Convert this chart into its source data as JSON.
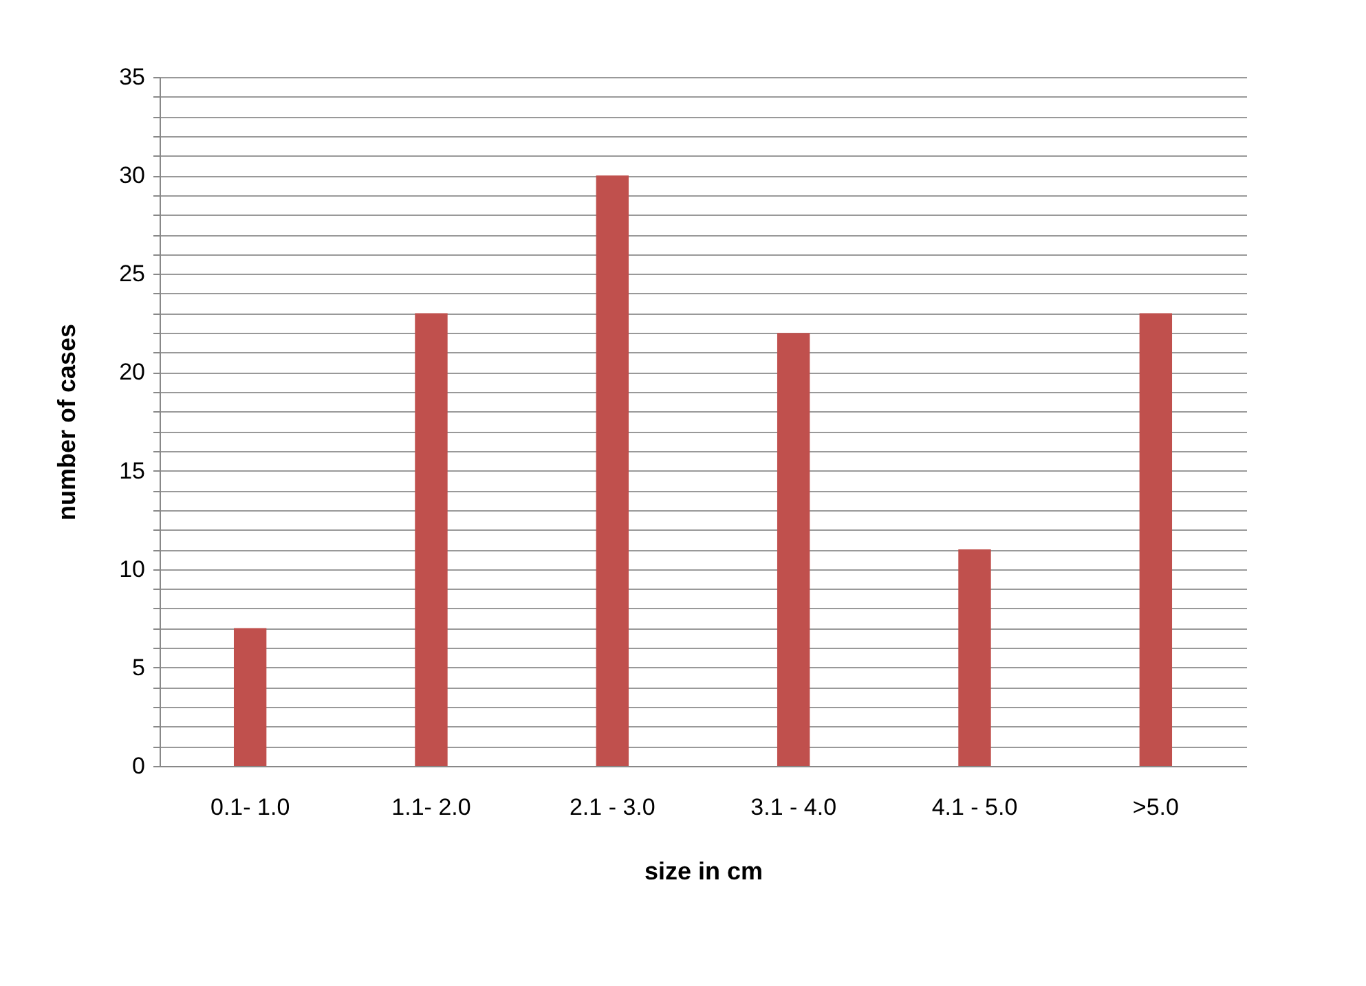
{
  "chart_data": {
    "type": "bar",
    "xlabel": "size in cm",
    "ylabel": "number of cases",
    "categories": [
      "0.1- 1.0",
      "1.1- 2.0",
      "2.1 - 3.0",
      "3.1 - 4.0",
      "4.1 - 5.0",
      ">5.0"
    ],
    "values": [
      7,
      23,
      30,
      22,
      11,
      23
    ],
    "color": "#c0504d",
    "ylim": [
      0,
      35
    ],
    "yticks": [
      0,
      {
        "value": 1,
        "label": null
      },
      {
        "value": 2,
        "label": null
      },
      {
        "value": 3,
        "label": null
      },
      {
        "value": 4,
        "label": null
      },
      5,
      {
        "value": 6,
        "label": null
      },
      {
        "value": 7,
        "label": null
      },
      {
        "value": 8,
        "label": null
      },
      {
        "value": 9,
        "label": null
      },
      10,
      {
        "value": 11,
        "label": null
      },
      {
        "value": 12,
        "label": null
      },
      {
        "value": 13,
        "label": null
      },
      {
        "value": 14,
        "label": null
      },
      15,
      {
        "value": 16,
        "label": null
      },
      {
        "value": 17,
        "label": null
      },
      {
        "value": 18,
        "label": null
      },
      {
        "value": 19,
        "label": null
      },
      20,
      {
        "value": 21,
        "label": null
      },
      {
        "value": 22,
        "label": null
      },
      {
        "value": 23,
        "label": null
      },
      {
        "value": 24,
        "label": null
      },
      25,
      {
        "value": 26,
        "label": null
      },
      {
        "value": 27,
        "label": null
      },
      {
        "value": 28,
        "label": null
      },
      {
        "value": 29,
        "label": null
      },
      30,
      {
        "value": 31,
        "label": null
      },
      {
        "value": 32,
        "label": null
      },
      {
        "value": 33,
        "label": null
      },
      {
        "value": 34,
        "label": null
      },
      35
    ],
    "grid": true
  }
}
